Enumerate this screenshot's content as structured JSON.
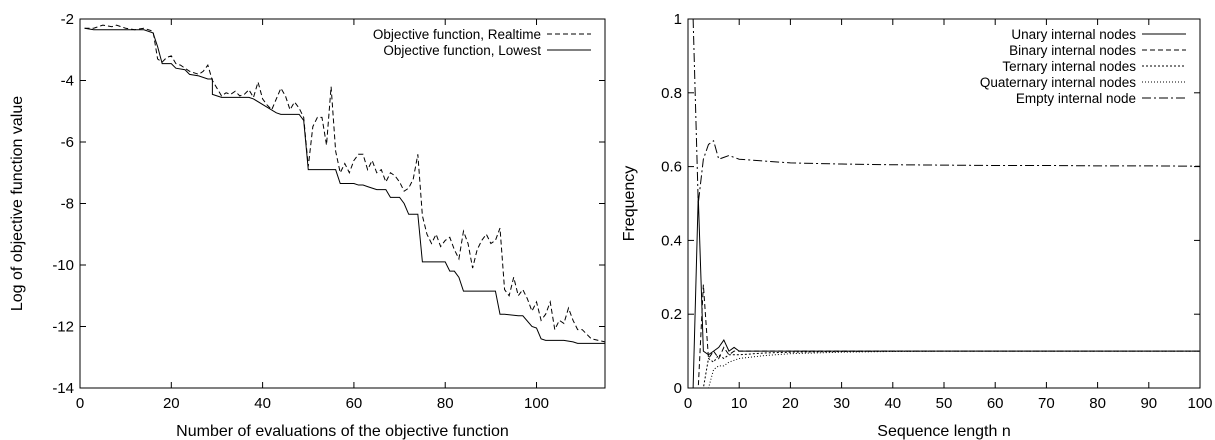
{
  "chart_data": [
    {
      "type": "line",
      "title": "",
      "xlabel": "Number of evaluations of the objective function",
      "ylabel": "Log of objective function value",
      "xlim": [
        0,
        115
      ],
      "ylim": [
        -14,
        -2
      ],
      "xticks": [
        0,
        20,
        40,
        60,
        80,
        100
      ],
      "yticks": [
        -2,
        -4,
        -6,
        -8,
        -10,
        -12,
        -14
      ],
      "grid": false,
      "legend_position": "top-right",
      "series": [
        {
          "name": "Objective function, Realtime",
          "style": "dashed",
          "x": [
            1,
            3,
            5,
            7,
            8,
            10,
            12,
            14,
            16,
            17,
            18,
            19,
            20,
            21,
            22,
            23,
            24,
            25,
            26,
            27,
            28,
            29,
            30,
            31,
            32,
            33,
            34,
            35,
            36,
            37,
            38,
            39,
            40,
            41,
            42,
            43,
            44,
            45,
            46,
            47,
            48,
            49,
            50,
            51,
            52,
            53,
            54,
            55,
            56,
            57,
            58,
            59,
            60,
            61,
            62,
            63,
            64,
            65,
            66,
            67,
            68,
            69,
            70,
            71,
            72,
            73,
            74,
            75,
            76,
            77,
            78,
            79,
            80,
            81,
            82,
            83,
            84,
            85,
            86,
            87,
            88,
            89,
            90,
            91,
            92,
            93,
            94,
            95,
            96,
            97,
            98,
            99,
            100,
            101,
            102,
            103,
            104,
            105,
            106,
            107,
            108,
            109,
            110,
            112,
            115
          ],
          "y": [
            -2.3,
            -2.3,
            -2.2,
            -2.25,
            -2.2,
            -2.3,
            -2.35,
            -2.3,
            -2.4,
            -3.3,
            -3.4,
            -3.25,
            -3.2,
            -3.45,
            -3.5,
            -3.6,
            -3.7,
            -3.75,
            -3.8,
            -3.7,
            -3.5,
            -4.0,
            -4.25,
            -4.5,
            -4.4,
            -4.45,
            -4.35,
            -4.5,
            -4.45,
            -4.3,
            -4.55,
            -4.05,
            -4.6,
            -4.8,
            -4.95,
            -4.6,
            -4.25,
            -4.5,
            -4.95,
            -4.7,
            -4.9,
            -5.2,
            -6.8,
            -5.5,
            -5.2,
            -5.2,
            -6.1,
            -4.2,
            -6.3,
            -7.0,
            -6.7,
            -7.0,
            -6.6,
            -6.4,
            -6.4,
            -6.9,
            -6.6,
            -7.0,
            -6.9,
            -7.3,
            -7.0,
            -7.1,
            -7.3,
            -7.6,
            -7.5,
            -7.2,
            -6.4,
            -8.4,
            -9.0,
            -9.3,
            -9.0,
            -9.4,
            -9.2,
            -9.1,
            -9.5,
            -9.8,
            -8.9,
            -9.3,
            -10.1,
            -9.5,
            -9.2,
            -9.0,
            -9.3,
            -9.2,
            -8.8,
            -10.8,
            -11.0,
            -10.4,
            -11.0,
            -10.8,
            -11.1,
            -11.5,
            -11.2,
            -11.8,
            -11.6,
            -11.2,
            -12.1,
            -11.8,
            -11.9,
            -11.4,
            -11.8,
            -12.1,
            -12.1,
            -12.4,
            -12.5
          ]
        },
        {
          "name": "Objective function, Lowest",
          "style": "solid",
          "x": [
            1,
            3,
            5,
            14,
            16,
            17,
            18,
            20,
            21,
            23,
            24,
            26,
            28,
            29,
            29,
            30,
            31,
            37,
            38,
            43,
            44,
            48,
            49,
            50,
            51,
            52,
            53,
            56,
            57,
            60,
            61,
            62,
            63,
            64,
            65,
            66,
            67,
            68,
            70,
            71,
            72,
            73,
            74,
            75,
            76,
            80,
            81,
            82,
            83,
            84,
            85,
            90,
            91,
            92,
            93,
            96,
            97,
            99,
            100,
            101,
            102,
            103,
            104,
            105,
            106,
            108,
            109,
            112,
            115
          ],
          "y": [
            -2.3,
            -2.35,
            -2.35,
            -2.35,
            -2.45,
            -2.9,
            -3.45,
            -3.45,
            -3.6,
            -3.65,
            -3.8,
            -3.85,
            -3.95,
            -3.95,
            -4.45,
            -4.5,
            -4.55,
            -4.55,
            -4.6,
            -5.05,
            -5.1,
            -5.1,
            -5.3,
            -6.9,
            -6.9,
            -6.9,
            -6.9,
            -6.9,
            -7.35,
            -7.35,
            -7.4,
            -7.4,
            -7.45,
            -7.5,
            -7.55,
            -7.55,
            -7.55,
            -7.8,
            -7.8,
            -8.0,
            -8.35,
            -8.35,
            -8.35,
            -9.9,
            -9.9,
            -9.9,
            -10.2,
            -10.2,
            -10.4,
            -10.85,
            -10.85,
            -10.85,
            -10.85,
            -11.6,
            -11.6,
            -11.65,
            -11.65,
            -12.0,
            -12.05,
            -12.4,
            -12.45,
            -12.45,
            -12.45,
            -12.45,
            -12.45,
            -12.5,
            -12.55,
            -12.55,
            -12.55
          ]
        }
      ]
    },
    {
      "type": "line",
      "title": "",
      "xlabel": "Sequence length n",
      "ylabel": "Frequency",
      "xlim": [
        0,
        100
      ],
      "ylim": [
        0,
        1
      ],
      "xticks": [
        0,
        10,
        20,
        30,
        40,
        50,
        60,
        70,
        80,
        90,
        100
      ],
      "yticks": [
        0,
        0.2,
        0.4,
        0.6,
        0.8,
        1
      ],
      "grid": false,
      "legend_position": "top-right",
      "series": [
        {
          "name": "Unary internal nodes",
          "style": "solid",
          "x": [
            1,
            2,
            3,
            4,
            5,
            6,
            7,
            8,
            9,
            10,
            15,
            20,
            30,
            40,
            50,
            60,
            70,
            80,
            90,
            100
          ],
          "y": [
            0,
            0.52,
            0.1,
            0.09,
            0.1,
            0.11,
            0.13,
            0.1,
            0.11,
            0.1,
            0.1,
            0.1,
            0.1,
            0.1,
            0.1,
            0.1,
            0.1,
            0.1,
            0.1,
            0.1
          ]
        },
        {
          "name": "Binary internal nodes",
          "style": "dashed",
          "x": [
            1,
            2,
            3,
            4,
            5,
            6,
            7,
            8,
            9,
            10,
            15,
            20,
            30,
            40,
            50,
            60,
            70,
            80,
            90,
            100
          ],
          "y": [
            0,
            0,
            0.28,
            0.08,
            0.1,
            0.08,
            0.11,
            0.09,
            0.1,
            0.1,
            0.1,
            0.1,
            0.1,
            0.1,
            0.1,
            0.1,
            0.1,
            0.1,
            0.1,
            0.1
          ]
        },
        {
          "name": "Ternary internal nodes",
          "style": "dotted",
          "x": [
            1,
            2,
            3,
            4,
            5,
            6,
            7,
            8,
            9,
            10,
            15,
            20,
            30,
            40,
            50,
            60,
            70,
            80,
            90,
            100
          ],
          "y": [
            0,
            0,
            0,
            0.08,
            0.07,
            0.09,
            0.08,
            0.09,
            0.09,
            0.09,
            0.095,
            0.097,
            0.099,
            0.1,
            0.1,
            0.1,
            0.1,
            0.1,
            0.1,
            0.1
          ]
        },
        {
          "name": "Quaternary internal nodes",
          "style": "fine-dotted",
          "x": [
            1,
            2,
            3,
            4,
            5,
            6,
            7,
            8,
            9,
            10,
            15,
            20,
            30,
            40,
            50,
            60,
            70,
            80,
            90,
            100
          ],
          "y": [
            0,
            0,
            0,
            0,
            0.05,
            0.06,
            0.06,
            0.07,
            0.075,
            0.08,
            0.088,
            0.093,
            0.097,
            0.099,
            0.1,
            0.1,
            0.1,
            0.1,
            0.1,
            0.1
          ]
        },
        {
          "name": "Empty internal node",
          "style": "dash-dot",
          "x": [
            1,
            2,
            3,
            4,
            5,
            6,
            7,
            8,
            9,
            10,
            15,
            20,
            30,
            40,
            50,
            60,
            70,
            80,
            90,
            100
          ],
          "y": [
            1.0,
            0.5,
            0.62,
            0.66,
            0.67,
            0.62,
            0.625,
            0.63,
            0.625,
            0.62,
            0.615,
            0.61,
            0.607,
            0.605,
            0.604,
            0.603,
            0.603,
            0.602,
            0.602,
            0.601
          ]
        }
      ]
    }
  ]
}
